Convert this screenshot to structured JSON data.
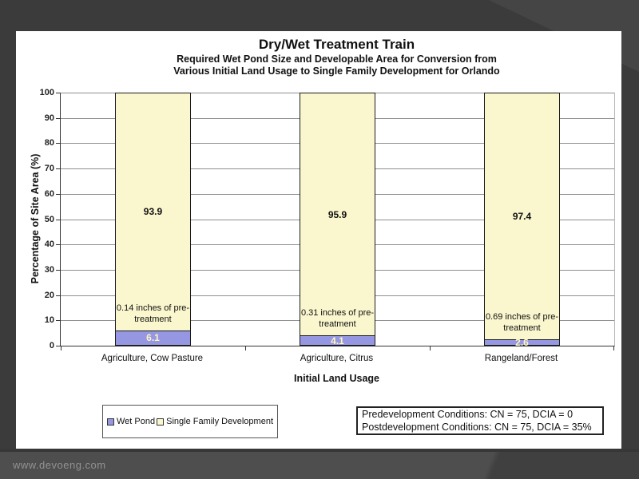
{
  "watermark": "www.devoeng.com",
  "chart_data": {
    "type": "bar",
    "stacked": true,
    "title": "Dry/Wet Treatment Train",
    "subtitle_lines": [
      "Required Wet Pond Size and Developable Area for Conversion from",
      "Various Initial Land Usage to Single Family Development for Orlando"
    ],
    "xlabel": "Initial Land Usage",
    "ylabel": "Percentage of Site Area (%)",
    "ylim": [
      0,
      100
    ],
    "yticks": [
      0,
      10,
      20,
      30,
      40,
      50,
      60,
      70,
      80,
      90,
      100
    ],
    "grid": true,
    "legend_position": "bottom-left",
    "categories": [
      "Agriculture, Cow Pasture",
      "Agriculture, Citrus",
      "Rangeland/Forest"
    ],
    "series": [
      {
        "name": "Wet Pond",
        "color": "#9697E3",
        "label_color": "#FFF6BE",
        "values": [
          6.1,
          4.1,
          2.6
        ]
      },
      {
        "name": "Single Family Development",
        "color": "#FAF7CE",
        "label_color": "#111111",
        "values": [
          93.9,
          95.9,
          97.4
        ]
      }
    ],
    "annotations": [
      "0.14 inches of pre-treatment",
      "0.31 inches of pre-treatment",
      "0.69 inches of pre-treatment"
    ]
  },
  "legend": {
    "items": [
      {
        "label": "Wet Pond",
        "color": "#9697E3"
      },
      {
        "label": "Single Family Development",
        "color": "#FAF7CE"
      }
    ]
  },
  "notes_box": {
    "lines": [
      "Predevelopment Conditions:  CN = 75, DCIA = 0",
      "Postdevelopment Conditions:  CN = 75, DCIA = 35%"
    ]
  }
}
